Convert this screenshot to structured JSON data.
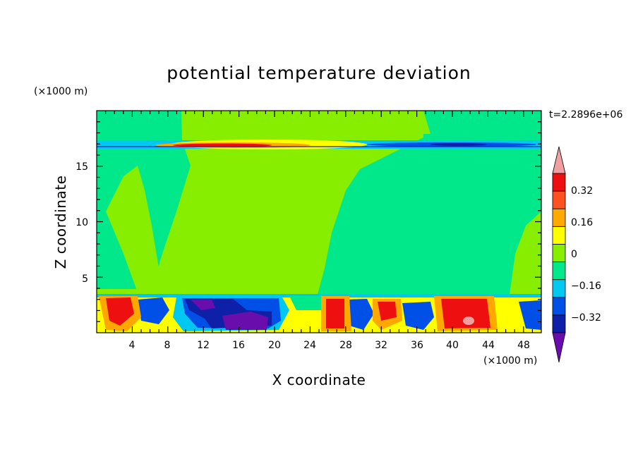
{
  "chart_data": {
    "type": "heatmap",
    "title": "potential temperature deviation",
    "xlabel": "X coordinate",
    "ylabel": "Z coordinate",
    "x_units": "(×1000 m)",
    "y_units": "(×1000 m)",
    "time_label": "t=2.2896e+06",
    "xlim": [
      0,
      50
    ],
    "ylim": [
      0,
      20
    ],
    "x_ticks": [
      "4",
      "8",
      "12",
      "16",
      "20",
      "24",
      "28",
      "32",
      "36",
      "40",
      "44",
      "48"
    ],
    "y_ticks": [
      "5",
      "10",
      "15"
    ],
    "x_tick_values": [
      4,
      8,
      12,
      16,
      20,
      24,
      28,
      32,
      36,
      40,
      44,
      48
    ],
    "y_tick_values": [
      5,
      10,
      15
    ],
    "colorbar": {
      "labels": [
        "0.32",
        "0.16",
        "0",
        "−0.16",
        "−0.32"
      ],
      "label_values": [
        0.32,
        0.16,
        0,
        -0.16,
        -0.32
      ],
      "levels": [
        -0.4,
        -0.32,
        -0.24,
        -0.16,
        -0.08,
        0,
        0.08,
        0.16,
        0.24,
        0.32,
        0.4
      ],
      "colors": [
        "#6a0dad",
        "#0f20a8",
        "#0050e8",
        "#00c8f0",
        "#00e88a",
        "#88ee00",
        "#ffff00",
        "#ffa800",
        "#ff5020",
        "#ee1010",
        "#f0a0a0"
      ]
    },
    "regions": [
      {
        "desc": "upper layer tropopause band",
        "z_range": [
          16.5,
          17.5
        ],
        "values": "strong positive west, negative east"
      },
      {
        "desc": "boundary layer",
        "z_range": [
          0,
          3.5
        ],
        "values": "mixed positive/negative cells"
      }
    ]
  }
}
